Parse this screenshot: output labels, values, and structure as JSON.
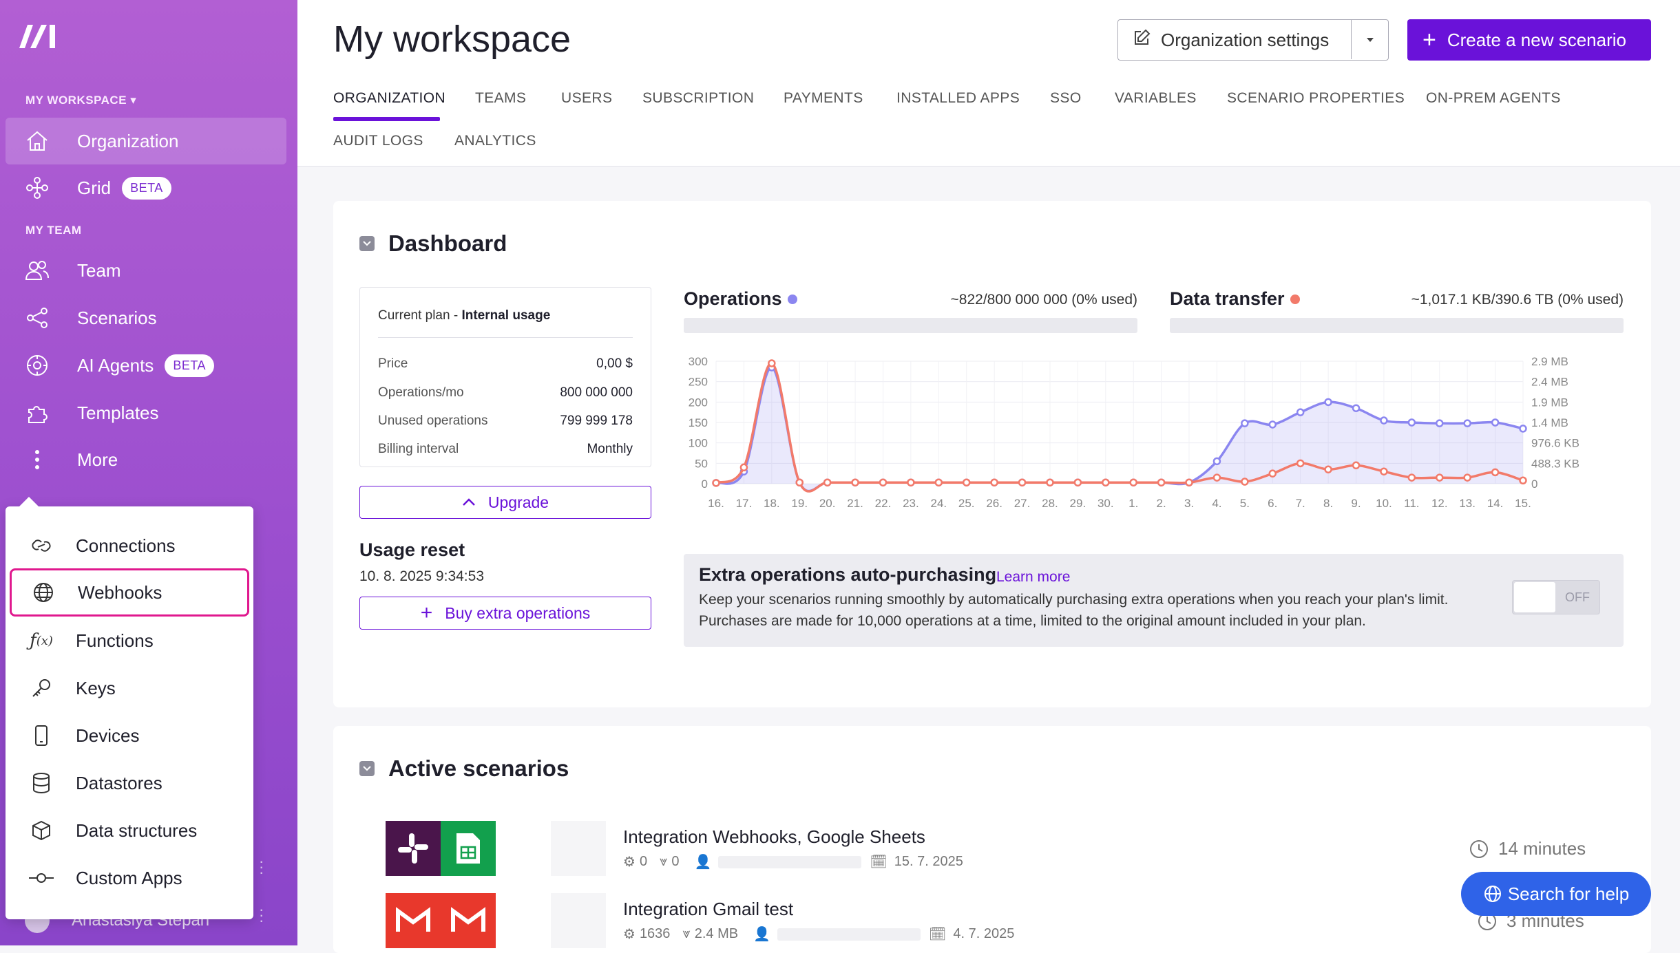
{
  "sidebar": {
    "section_workspace": "MY WORKSPACE",
    "section_team": "MY TEAM",
    "items": [
      {
        "label": "Organization"
      },
      {
        "label": "Grid",
        "badge": "BETA"
      },
      {
        "label": "Team"
      },
      {
        "label": "Scenarios"
      },
      {
        "label": "AI Agents",
        "badge": "BETA"
      },
      {
        "label": "Templates"
      },
      {
        "label": "More"
      }
    ],
    "more_menu": [
      "Connections",
      "Webhooks",
      "Functions",
      "Keys",
      "Devices",
      "Datastores",
      "Data structures",
      "Custom Apps"
    ],
    "user_name": "Anastasiya Stepan"
  },
  "header": {
    "title": "My workspace",
    "org_settings_label": "Organization settings",
    "create_label": "Create a new scenario",
    "tabs": [
      "ORGANIZATION",
      "TEAMS",
      "USERS",
      "SUBSCRIPTION",
      "PAYMENTS",
      "INSTALLED APPS",
      "SSO",
      "VARIABLES",
      "SCENARIO PROPERTIES",
      "ON-PREM AGENTS",
      "AUDIT LOGS",
      "ANALYTICS"
    ],
    "active_tab": "ORGANIZATION"
  },
  "dashboard": {
    "title": "Dashboard",
    "plan": {
      "label": "Current plan - ",
      "name": "Internal usage",
      "rows": [
        {
          "k": "Price",
          "v": "0,00 $"
        },
        {
          "k": "Operations/mo",
          "v": "800 000 000"
        },
        {
          "k": "Unused operations",
          "v": "799 999 178"
        },
        {
          "k": "Billing interval",
          "v": "Monthly"
        }
      ]
    },
    "upgrade_label": "Upgrade",
    "usage_reset_title": "Usage reset",
    "usage_reset_date": "10. 8. 2025 9:34:53",
    "buy_label": "Buy extra operations",
    "operations_title": "Operations",
    "operations_value": "~822/800 000 000 (0% used)",
    "data_transfer_title": "Data transfer",
    "data_transfer_value": "~1,017.1 KB/390.6 TB (0% used)",
    "extra": {
      "title": "Extra operations auto-purchasing",
      "link": "Learn more",
      "line1": "Keep your scenarios running smoothly by automatically purchasing extra operations when you reach your plan's limit.",
      "line2": "Purchases are made for 10,000 operations at a time, limited to the original amount included in your plan.",
      "toggle_label": "OFF"
    }
  },
  "colors": {
    "accent": "#6a12d9",
    "operations": "#8b86f0",
    "data_transfer": "#f27a6a",
    "help": "#2f63e8"
  },
  "chart_data": {
    "type": "line",
    "x": [
      "16.",
      "17.",
      "18.",
      "19.",
      "20.",
      "21.",
      "22.",
      "23.",
      "24.",
      "25.",
      "26.",
      "27.",
      "28.",
      "29.",
      "30.",
      "1.",
      "2.",
      "3.",
      "4.",
      "5.",
      "6.",
      "7.",
      "8.",
      "9.",
      "10.",
      "11.",
      "12.",
      "13.",
      "14.",
      "15."
    ],
    "y_left_ticks": [
      "300",
      "250",
      "200",
      "150",
      "100",
      "50",
      "0"
    ],
    "y_right_ticks": [
      "2.9 MB",
      "2.4 MB",
      "1.9 MB",
      "1.4 MB",
      "976.6 KB",
      "488.3 KB",
      "0"
    ],
    "ylim_left": [
      0,
      300
    ],
    "series": [
      {
        "name": "Operations",
        "axis": "left",
        "values": [
          2,
          30,
          285,
          3,
          3,
          3,
          3,
          3,
          3,
          3,
          3,
          3,
          3,
          3,
          3,
          3,
          3,
          3,
          55,
          148,
          145,
          175,
          200,
          185,
          155,
          150,
          148,
          148,
          150,
          135
        ]
      },
      {
        "name": "Data transfer",
        "axis": "left",
        "values": [
          2,
          40,
          295,
          3,
          3,
          3,
          3,
          3,
          3,
          3,
          3,
          3,
          3,
          3,
          3,
          3,
          3,
          3,
          15,
          5,
          25,
          50,
          35,
          45,
          30,
          15,
          15,
          15,
          28,
          8
        ]
      }
    ]
  },
  "scenarios": {
    "title": "Active scenarios",
    "items": [
      {
        "name": "Integration Webhooks, Google Sheets",
        "ops": "0",
        "transfer": "0",
        "date": "15. 7. 2025",
        "time": "14 minutes"
      },
      {
        "name": "Integration Gmail test",
        "ops": "1636",
        "transfer": "2.4 MB",
        "date": "4. 7. 2025",
        "time": "3 minutes"
      }
    ]
  },
  "help_label": "Search for help"
}
